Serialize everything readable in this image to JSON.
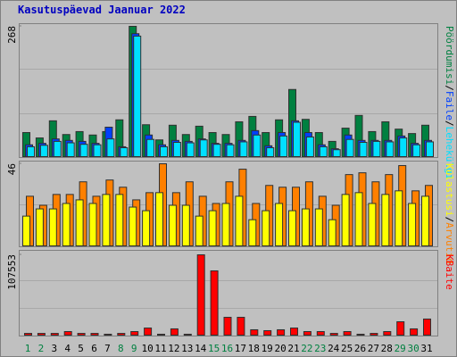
{
  "title": "Kasutuspäevad Jaanuar 2022",
  "separator": "/",
  "chart_data": [
    {
      "type": "bar",
      "ylim": [
        0,
        268
      ],
      "yticks": [
        268
      ],
      "series": [
        {
          "name": "Pöördumisi",
          "color": "#008040",
          "values": [
            51,
            40,
            75,
            47,
            53,
            46,
            53,
            77,
            268,
            67,
            36,
            66,
            47,
            64,
            51,
            47,
            73,
            84,
            51,
            77,
            139,
            78,
            51,
            33,
            60,
            86,
            53,
            73,
            58,
            49,
            66
          ]
        },
        {
          "name": "Faile",
          "color": "#0040ff",
          "values": [
            26,
            29,
            38,
            35,
            33,
            29,
            62,
            22,
            253,
            46,
            26,
            35,
            33,
            38,
            29,
            29,
            35,
            55,
            24,
            51,
            75,
            51,
            26,
            18,
            46,
            35,
            35,
            35,
            44,
            29,
            35
          ]
        },
        {
          "name": "Lehekülgi",
          "color": "#00e0ff",
          "values": [
            22,
            25,
            33,
            30,
            27,
            26,
            38,
            20,
            248,
            37,
            22,
            31,
            30,
            36,
            27,
            26,
            32,
            46,
            20,
            44,
            72,
            42,
            22,
            16,
            37,
            31,
            33,
            32,
            40,
            26,
            32
          ]
        }
      ]
    },
    {
      "type": "bar",
      "ylim": [
        0,
        46
      ],
      "yticks": [
        46
      ],
      "series": [
        {
          "name": "Külastusi",
          "color": "#ffff00",
          "values": [
            17,
            21,
            21,
            24,
            26,
            24,
            29,
            29,
            22,
            20,
            30,
            23,
            23,
            17,
            20,
            24,
            28,
            15,
            20,
            24,
            20,
            21,
            21,
            15,
            29,
            30,
            24,
            29,
            31,
            24,
            28
          ]
        },
        {
          "name": "Arvutid",
          "color": "#ff8000",
          "values": [
            28,
            23,
            29,
            29,
            36,
            28,
            37,
            33,
            26,
            30,
            46,
            30,
            36,
            28,
            24,
            36,
            43,
            24,
            34,
            33,
            33,
            36,
            28,
            23,
            40,
            41,
            36,
            40,
            45,
            31,
            34
          ]
        }
      ]
    },
    {
      "type": "bar",
      "ylim": [
        0,
        107553
      ],
      "yticks": [
        107553
      ],
      "categories": [
        "1",
        "2",
        "3",
        "4",
        "5",
        "6",
        "7",
        "8",
        "9",
        "10",
        "11",
        "12",
        "13",
        "14",
        "15",
        "16",
        "17",
        "18",
        "19",
        "20",
        "21",
        "22",
        "23",
        "24",
        "25",
        "26",
        "27",
        "28",
        "29",
        "30",
        "31"
      ],
      "category_colors": [
        "#008040",
        "#008040",
        "#000000",
        "#000000",
        "#000000",
        "#000000",
        "#000000",
        "#008040",
        "#008040",
        "#000000",
        "#000000",
        "#000000",
        "#000000",
        "#000000",
        "#008040",
        "#008040",
        "#000000",
        "#000000",
        "#000000",
        "#000000",
        "#000000",
        "#008040",
        "#008040",
        "#000000",
        "#000000",
        "#000000",
        "#000000",
        "#000000",
        "#008040",
        "#008040",
        "#000000"
      ],
      "series": [
        {
          "name": "KBaite",
          "color": "#ff0000",
          "values": [
            3500,
            3500,
            3500,
            5900,
            3500,
            3500,
            2400,
            3500,
            5900,
            10600,
            2400,
            9500,
            2400,
            107553,
            86300,
            24800,
            24800,
            8300,
            7100,
            8300,
            10600,
            5900,
            5900,
            3500,
            5900,
            2400,
            3500,
            5900,
            18900,
            9500,
            22500
          ]
        }
      ]
    }
  ]
}
